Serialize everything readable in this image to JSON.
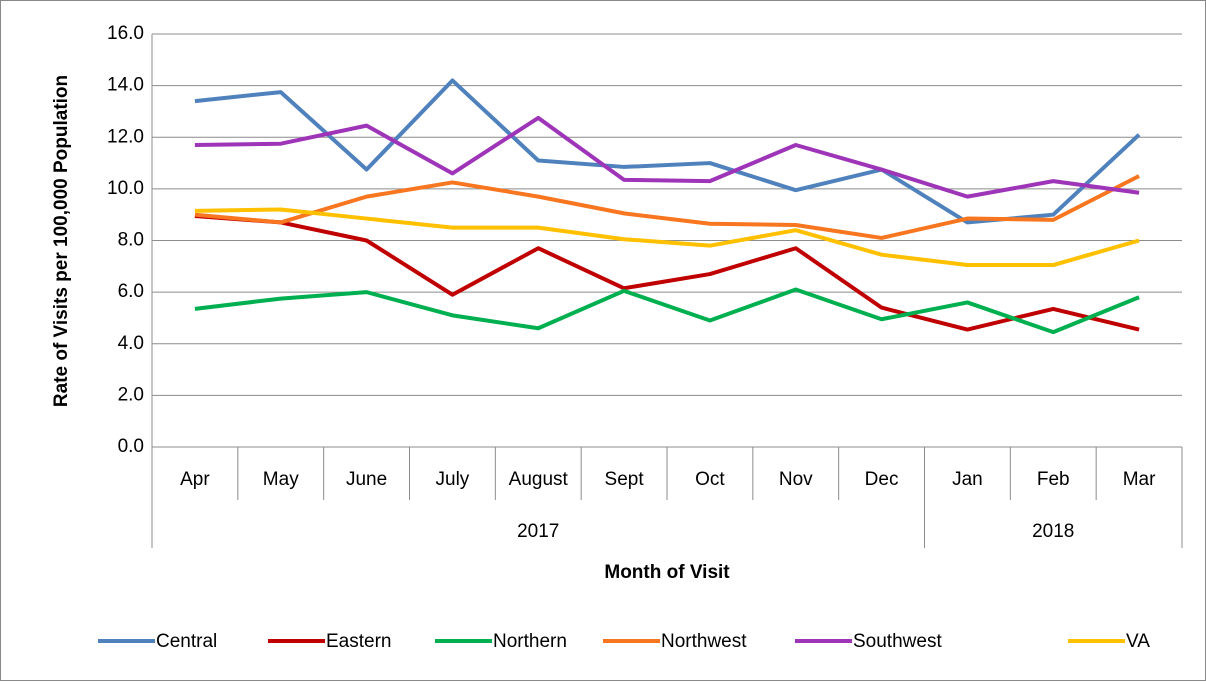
{
  "chart_data": {
    "type": "line",
    "x_axis_label": "Month of Visit",
    "y_axis_label": "Rate of Visits per 100,000 Population",
    "categories": [
      "Apr",
      "May",
      "June",
      "July",
      "August",
      "Sept",
      "Oct",
      "Nov",
      "Dec",
      "Jan",
      "Feb",
      "Mar"
    ],
    "category_groups": [
      {
        "label": "2017",
        "count": 9
      },
      {
        "label": "2018",
        "count": 3
      }
    ],
    "ylim": [
      0,
      16
    ],
    "yticks": [
      {
        "value": 0,
        "label": "0.0"
      },
      {
        "value": 2,
        "label": "2.0"
      },
      {
        "value": 4,
        "label": "4.0"
      },
      {
        "value": 6,
        "label": "6.0"
      },
      {
        "value": 8,
        "label": "8.0"
      },
      {
        "value": 10,
        "label": "10.0"
      },
      {
        "value": 12,
        "label": "12.0"
      },
      {
        "value": 14,
        "label": "14.0"
      },
      {
        "value": 16,
        "label": "16.0"
      }
    ],
    "grid": true,
    "legend": "bottom",
    "series": [
      {
        "name": "Central",
        "color": "#4f81bd",
        "values": [
          13.4,
          13.75,
          10.75,
          14.2,
          11.1,
          10.85,
          11.0,
          9.95,
          10.75,
          8.7,
          9.0,
          12.1
        ]
      },
      {
        "name": "Eastern",
        "color": "#c00000",
        "values": [
          8.95,
          8.7,
          8.0,
          5.9,
          7.7,
          6.15,
          6.7,
          7.7,
          5.4,
          4.55,
          5.35,
          4.55
        ]
      },
      {
        "name": "Northern",
        "color": "#00b050",
        "values": [
          5.35,
          5.75,
          6.0,
          5.1,
          4.6,
          6.05,
          4.9,
          6.1,
          4.95,
          5.6,
          4.45,
          5.8
        ]
      },
      {
        "name": "Northwest",
        "color": "#f7761f",
        "values": [
          9.0,
          8.7,
          9.7,
          10.25,
          9.7,
          9.05,
          8.65,
          8.6,
          8.1,
          8.85,
          8.8,
          10.5
        ]
      },
      {
        "name": "Southwest",
        "color": "#9e34b8",
        "values": [
          11.7,
          11.75,
          12.45,
          10.6,
          12.75,
          10.35,
          10.3,
          11.7,
          10.75,
          9.7,
          10.3,
          9.85
        ]
      },
      {
        "name": "VA",
        "color": "#ffc000",
        "values": [
          9.15,
          9.2,
          8.85,
          8.5,
          8.5,
          8.05,
          7.8,
          8.4,
          7.45,
          7.05,
          7.05,
          8.0
        ]
      }
    ]
  }
}
